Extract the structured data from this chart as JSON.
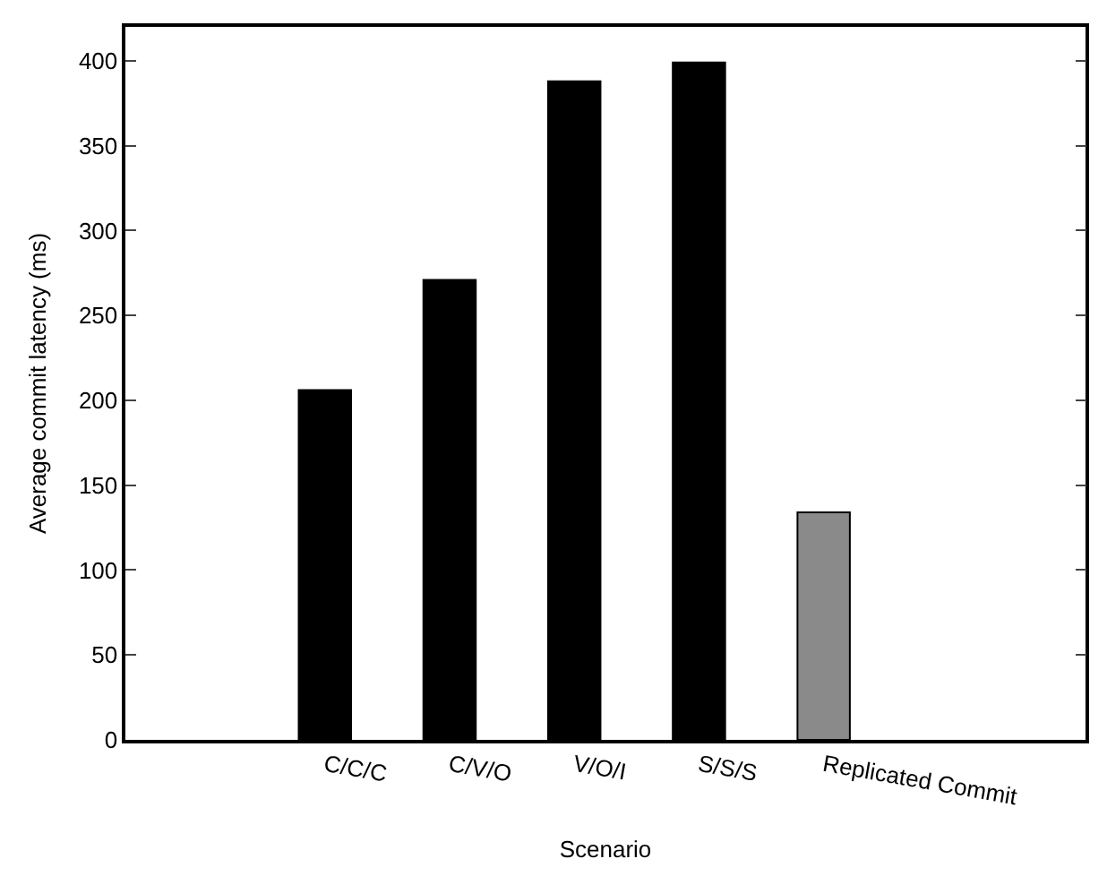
{
  "chart_data": {
    "type": "bar",
    "xlabel": "Scenario",
    "ylabel": "Average commit latency (ms)",
    "categories": [
      "C/C/C",
      "C/V/O",
      "V/O/I",
      "S/S/S",
      "Replicated Commit"
    ],
    "values": [
      206,
      271,
      388,
      399,
      134
    ],
    "colors": [
      "#000000",
      "#000000",
      "#000000",
      "#000000",
      "#8a8a8a"
    ],
    "ylim": [
      0,
      420
    ],
    "yticks": [
      0,
      50,
      100,
      150,
      200,
      250,
      300,
      350,
      400
    ]
  }
}
